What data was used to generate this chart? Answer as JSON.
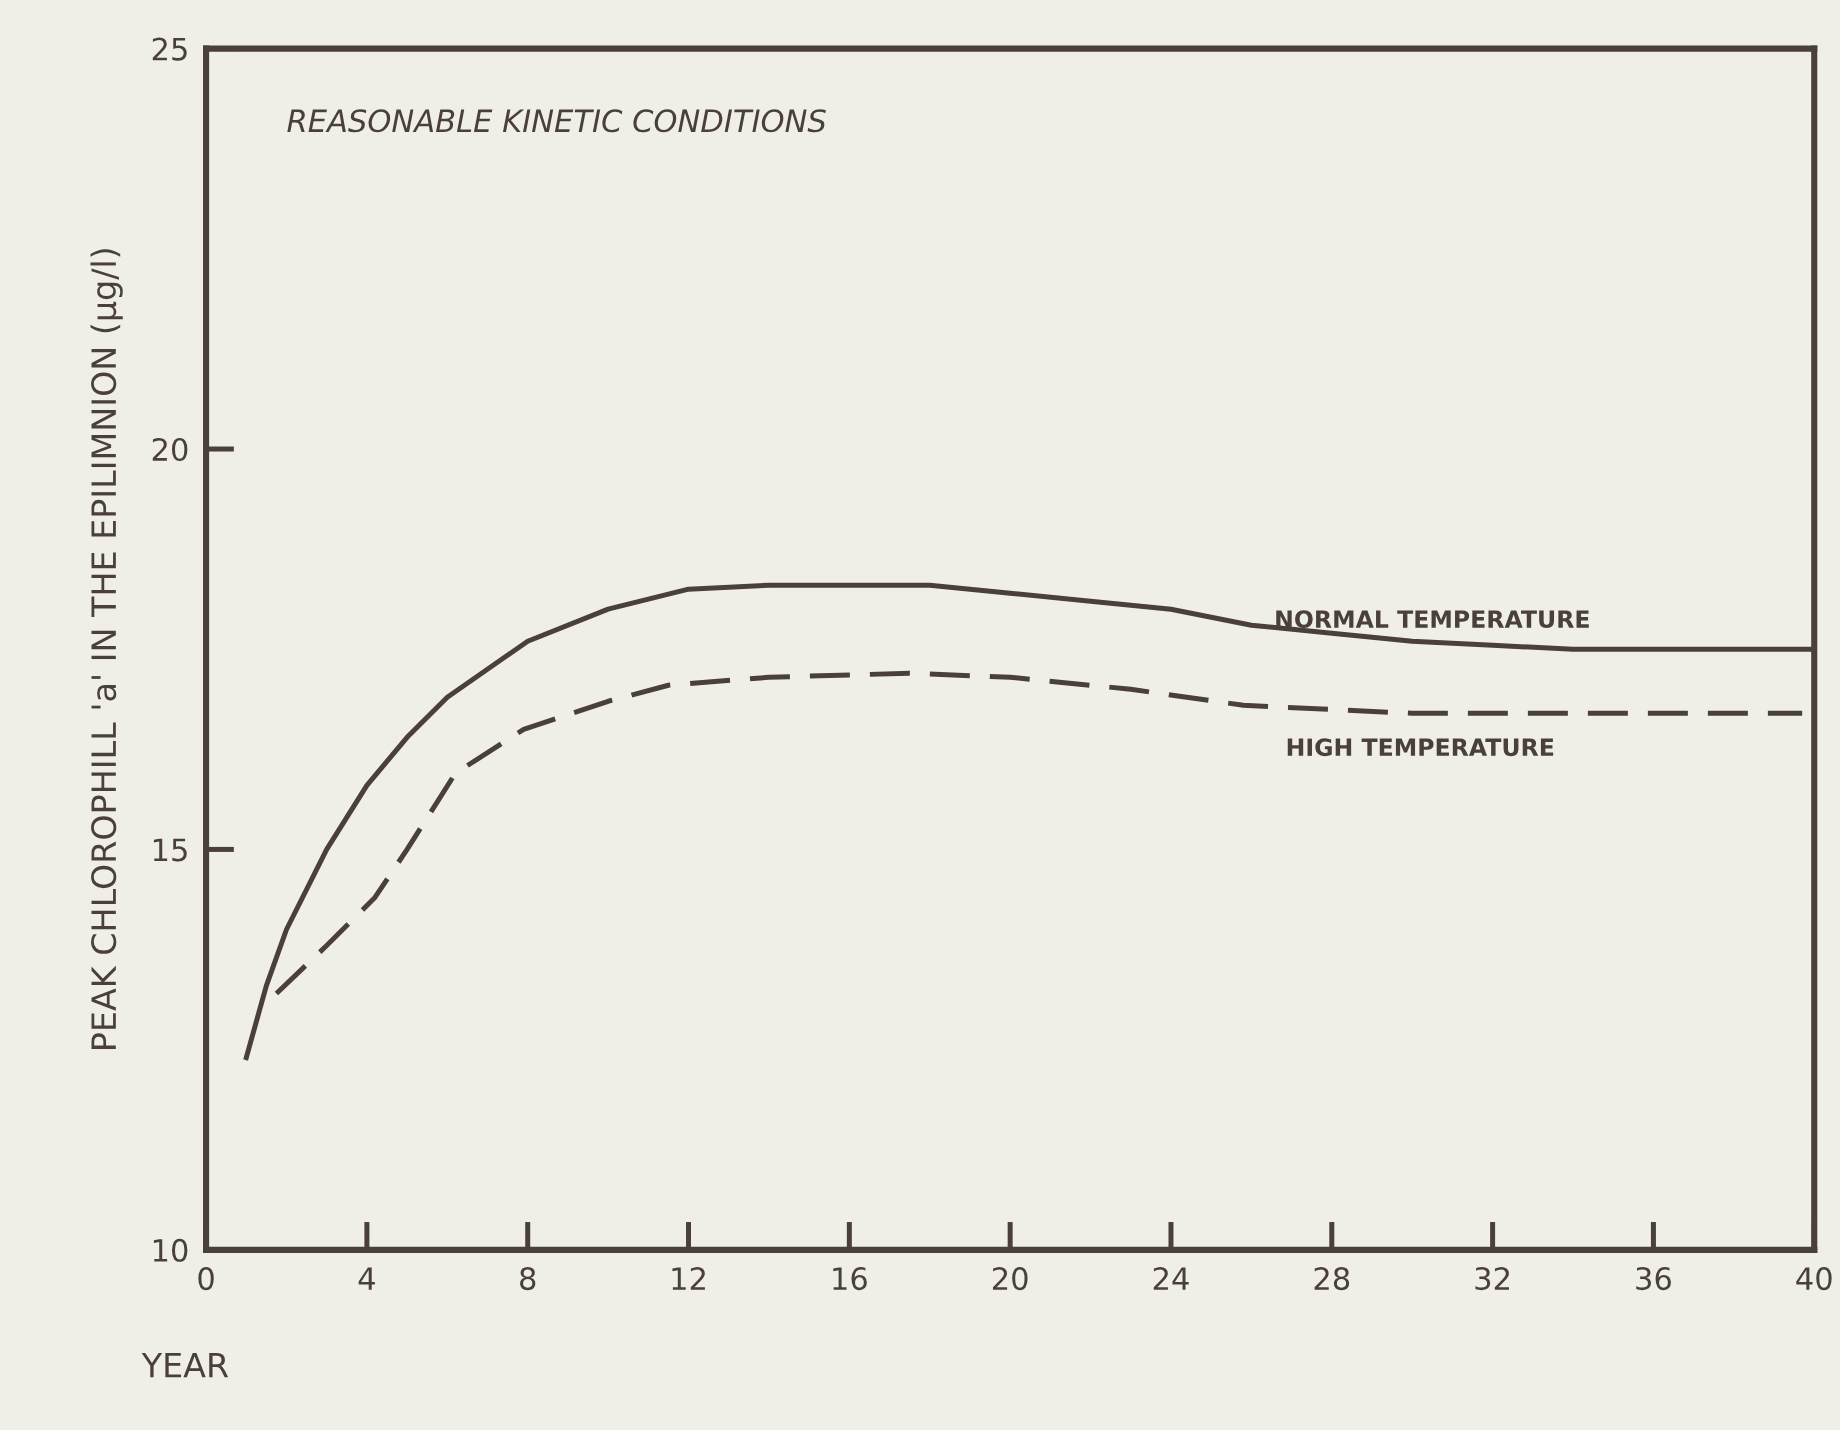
{
  "chart_data": {
    "type": "line",
    "xlabel": "YEAR",
    "ylabel": "PEAK CHLOROPHILL 'a' IN THE EPILIMNION (μg/l)",
    "annotations": [
      "REASONABLE KINETIC CONDITIONS"
    ],
    "xlim": [
      0,
      40
    ],
    "xticks": [
      0,
      4,
      8,
      12,
      16,
      20,
      24,
      28,
      32,
      36,
      40
    ],
    "ylim": [
      10,
      25
    ],
    "yticks": [
      10,
      15,
      20,
      25
    ],
    "grid": false,
    "legend": false,
    "marker": "none",
    "series": [
      {
        "name": "NORMAL TEMPERATURE",
        "color": "#4a4039",
        "line_style": "solid",
        "x": [
          1,
          1.5,
          2,
          3,
          4,
          5,
          6,
          8,
          10,
          12,
          14,
          16,
          18,
          20,
          22,
          24,
          26,
          28,
          30,
          32,
          34,
          36,
          40
        ],
        "values": [
          12.4,
          13.3,
          14.0,
          15.0,
          15.8,
          16.4,
          16.9,
          17.6,
          18.0,
          18.25,
          18.3,
          18.3,
          18.3,
          18.2,
          18.1,
          18.0,
          17.8,
          17.7,
          17.6,
          17.55,
          17.5,
          17.5,
          17.5
        ]
      },
      {
        "name": "HIGH TEMPERATURE",
        "color": "#4a4039",
        "line_style": "dashed",
        "x": [
          1.75,
          3,
          4.2,
          5,
          6.2,
          7.9,
          10,
          11.5,
          14,
          17.5,
          20,
          23,
          25.8,
          30,
          35,
          39.7
        ],
        "values": [
          13.2,
          13.8,
          14.4,
          15.0,
          15.95,
          16.5,
          16.85,
          17.05,
          17.15,
          17.2,
          17.15,
          17.0,
          16.8,
          16.7,
          16.7,
          16.7
        ]
      }
    ]
  }
}
